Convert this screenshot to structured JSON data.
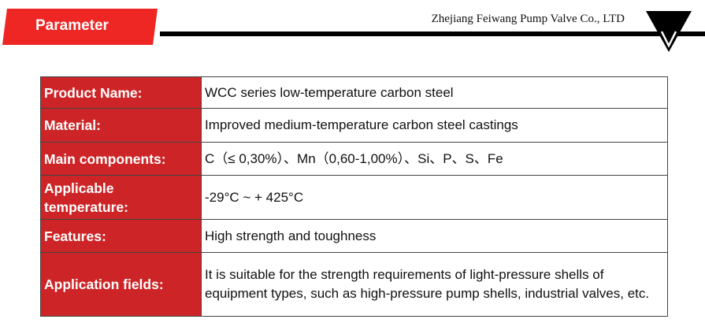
{
  "header": {
    "title": "Parameter",
    "company": "Zhejiang Feiwang Pump Valve Co., LTD",
    "accent": "#ee2624"
  },
  "table": [
    {
      "label": "Product Name:",
      "value": "WCC series low-temperature carbon steel"
    },
    {
      "label": "Material:",
      "value": "Improved medium-temperature carbon steel castings"
    },
    {
      "label": "Main components:",
      "value": "C（≤ 0,30%）、Mn（0,60-1,00%）、Si、P、S、Fe"
    },
    {
      "label": "Applicable temperature:",
      "value": "-29°C ~ + 425°C"
    },
    {
      "label": "Features:",
      "value": "High strength and toughness"
    },
    {
      "label": "Application fields:",
      "value": "It is suitable for the strength requirements of light-pressure shells of equipment types, such as high-pressure pump shells, industrial valves, etc."
    }
  ]
}
